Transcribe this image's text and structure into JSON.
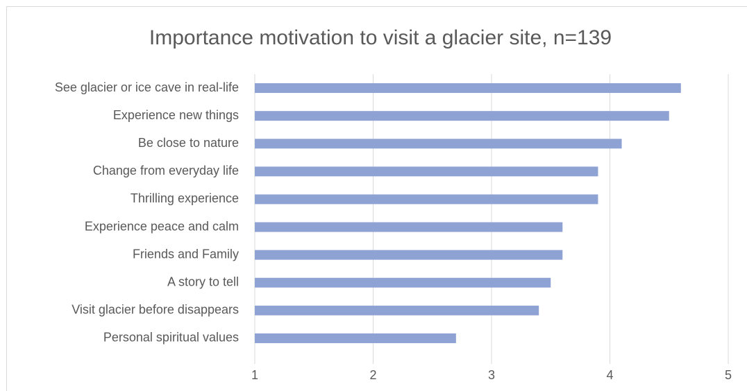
{
  "chart_data": {
    "type": "bar",
    "orientation": "horizontal",
    "title": "Importance motivation to visit a glacier site, n=139",
    "categories": [
      "See glacier or ice cave in real-life",
      "Experience new things",
      "Be close to nature",
      "Change from everyday life",
      "Thrilling experience",
      "Experience peace and calm",
      "Friends and Family",
      "A story to tell",
      "Visit glacier before disappears",
      "Personal spiritual values"
    ],
    "values": [
      4.6,
      4.5,
      4.1,
      3.9,
      3.9,
      3.6,
      3.6,
      3.5,
      3.4,
      2.7
    ],
    "color": "#8fa2d4",
    "xlim": [
      1,
      5
    ],
    "xticks": [
      1,
      2,
      3,
      4,
      5
    ],
    "grid": true
  }
}
